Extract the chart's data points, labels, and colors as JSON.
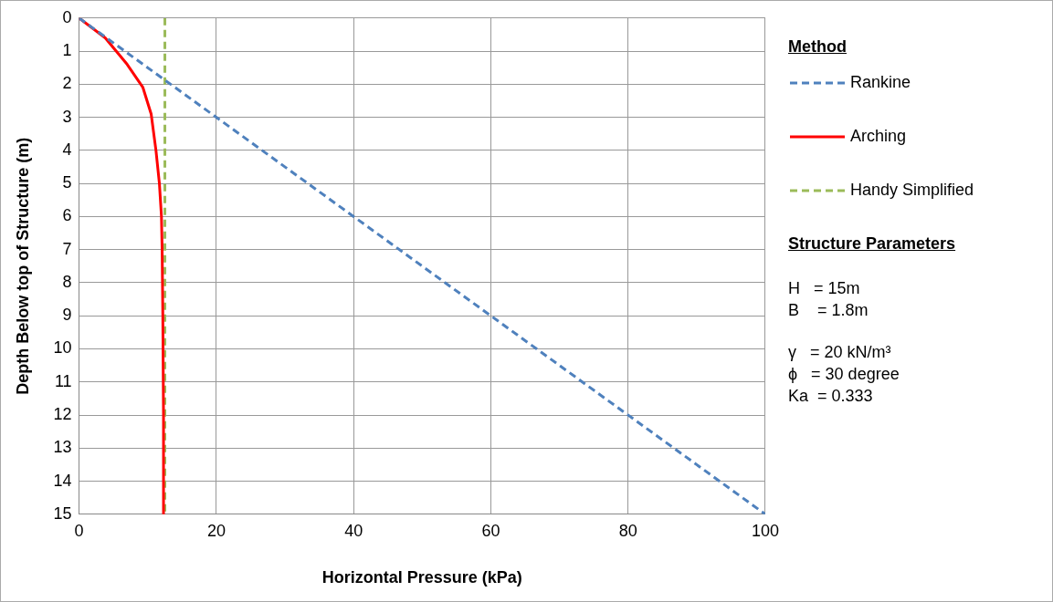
{
  "chart_data": {
    "type": "line",
    "xlabel": "Horizontal Pressure (kPa)",
    "ylabel": "Depth Below top of Structure (m)",
    "legend_title": "Method",
    "legend": "right",
    "grid": true,
    "marker": "none",
    "xlim": [
      0,
      100
    ],
    "xticks": [
      0,
      20,
      40,
      60,
      80,
      100
    ],
    "ylim": [
      15,
      0
    ],
    "yticks": [
      0,
      1,
      2,
      3,
      4,
      5,
      6,
      7,
      8,
      9,
      10,
      11,
      12,
      13,
      14,
      15
    ],
    "series": [
      {
        "name": "Rankine",
        "color": "#4f81bd",
        "line_style": "dashed",
        "x": [
          0,
          100
        ],
        "values": [
          0,
          15
        ]
      },
      {
        "name": "Arching",
        "color": "#ff0000",
        "line_style": "solid",
        "x": [
          0,
          3.8,
          7.0,
          9.3,
          10.5,
          11.2,
          11.7,
          12.0,
          12.1,
          12.2,
          12.3,
          12.3
        ],
        "values": [
          0,
          0.6,
          1.4,
          2.1,
          2.9,
          4.0,
          5.0,
          6.0,
          7.0,
          9.0,
          12.0,
          15
        ]
      },
      {
        "name": "Handy Simplified",
        "color": "#9bbb59",
        "line_style": "dashed",
        "x": [
          12.5,
          12.5
        ],
        "values": [
          0,
          15
        ]
      }
    ],
    "annotations": [
      "Structure Parameters",
      "H   = 15m",
      "B    = 1.8m",
      "γ   = 20 kN/m³",
      "ϕ   = 30 degree",
      "Ka  = 0.333"
    ]
  }
}
